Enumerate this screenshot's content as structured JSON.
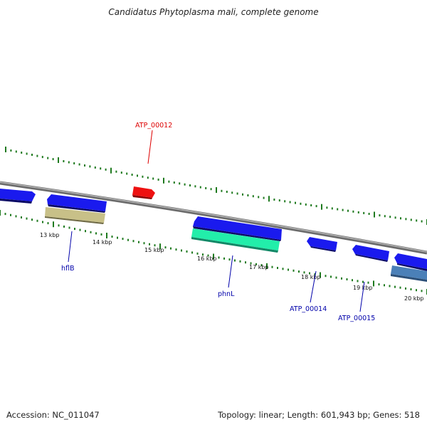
{
  "title": "Candidatus Phytoplasma mali, complete genome",
  "footer": {
    "accession": "Accession: NC_011047",
    "summary": "Topology: linear; Length: 601,943 bp; Genes: 518"
  },
  "colors": {
    "backbone": "#8a8a8a",
    "tick": "#1f7a1f",
    "label_red": "#dd0000",
    "label_blue": "#0000aa",
    "gene_blue": "#1a1aee",
    "gene_khaki": "#c8c088",
    "gene_teal": "#22eeaa",
    "gene_steel": "#4b80b8",
    "gene_red": "#ee1111"
  },
  "scale_labels": [
    "13 kbp",
    "14 kbp",
    "15 kbp",
    "16 kbp",
    "17 kbp",
    "18 kbp",
    "19 kbp",
    "20 kbp"
  ],
  "gene_labels": [
    {
      "text": "ATP_00012",
      "color": "red"
    },
    {
      "text": "hflB",
      "color": "blue"
    },
    {
      "text": "phnL",
      "color": "blue"
    },
    {
      "text": "ATP_00014",
      "color": "blue"
    },
    {
      "text": "ATP_00015",
      "color": "blue"
    }
  ]
}
